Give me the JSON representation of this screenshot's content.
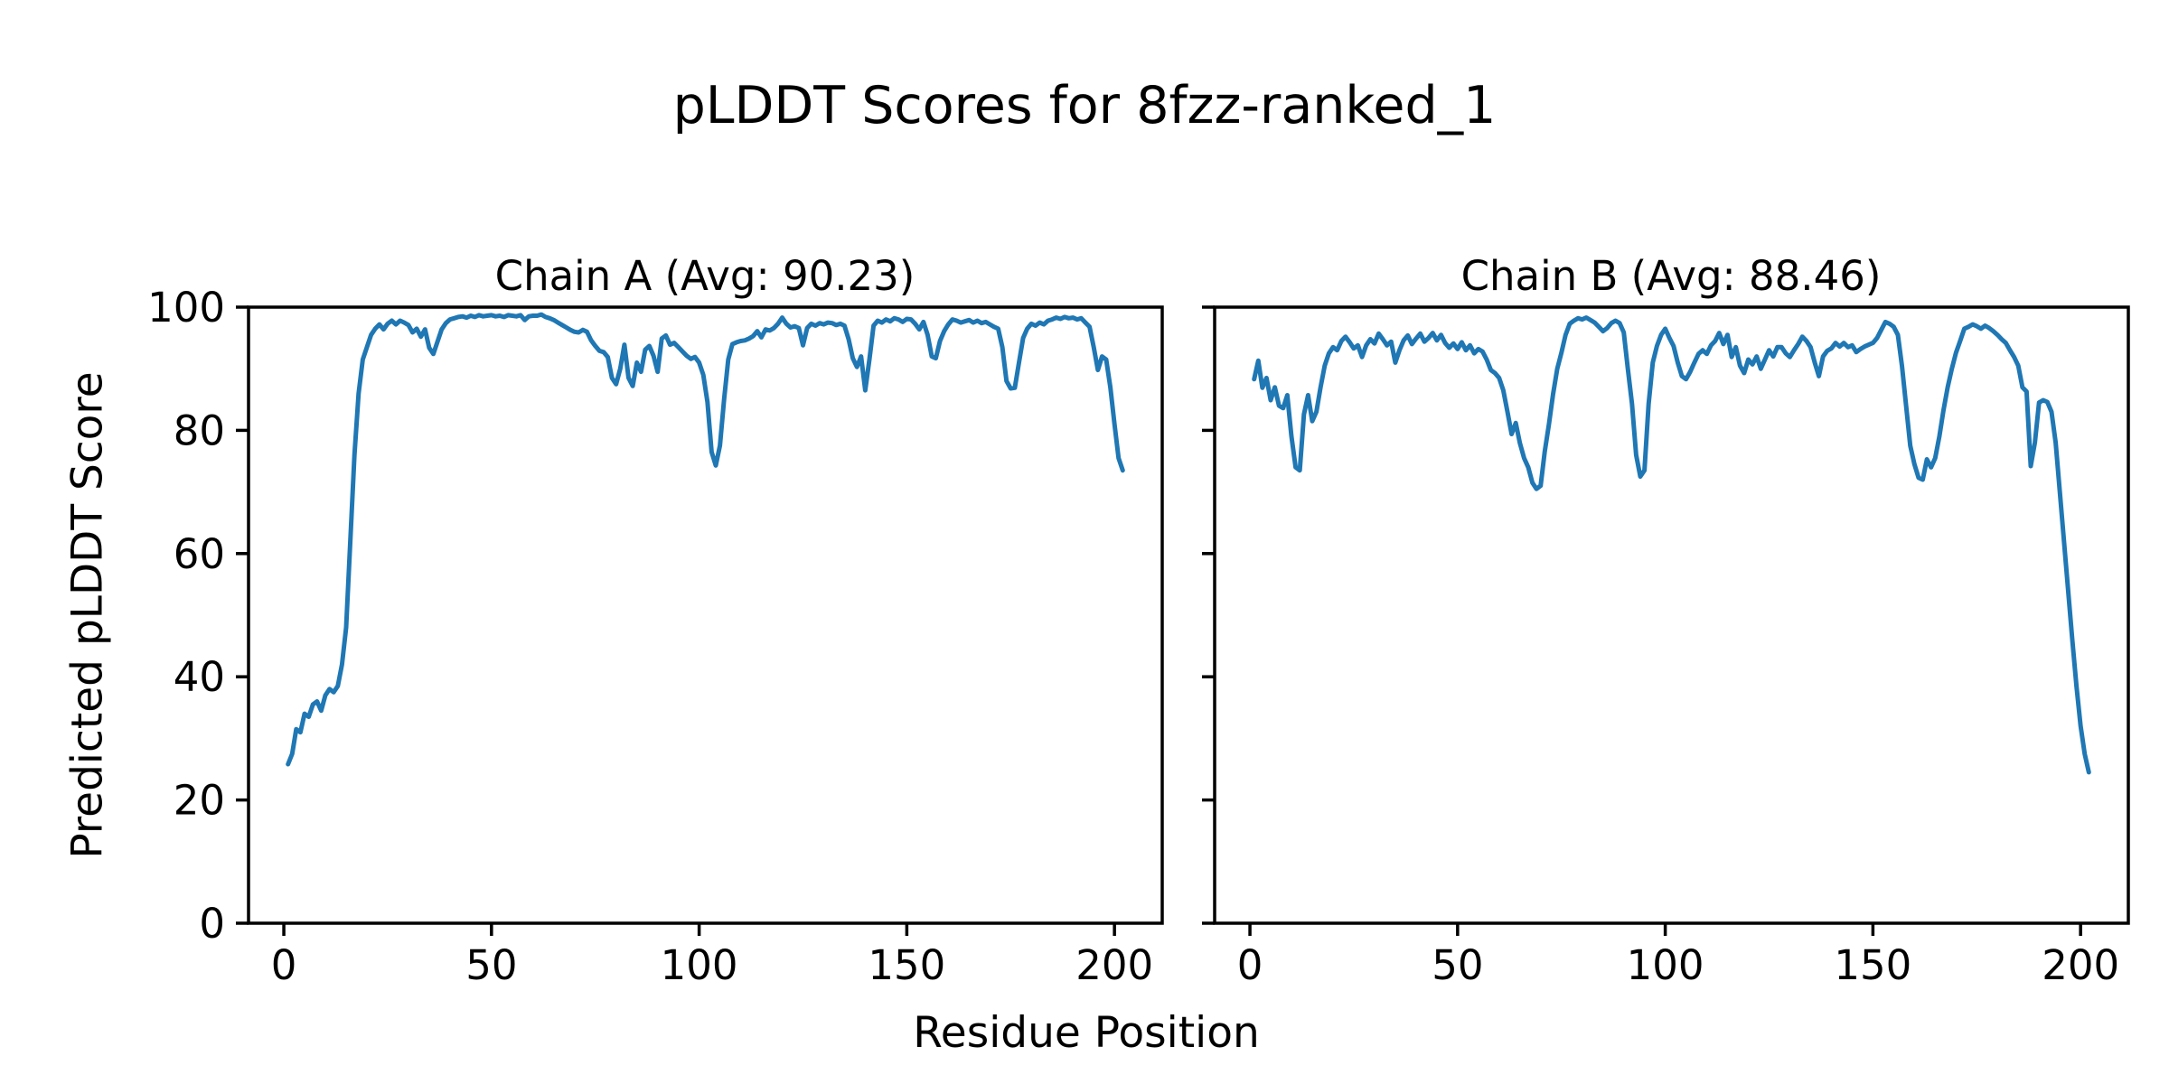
{
  "figure": {
    "title": "pLDDT Scores for 8fzz-ranked_1"
  },
  "chart_data": {
    "type": "line",
    "title": "pLDDT Scores for 8fzz-ranked_1",
    "xlabel": "Residue Position",
    "ylabel": "Predicted pLDDT Score",
    "grid": false,
    "legend": null,
    "line_color": "#1f77b4",
    "axis_color": "#000000",
    "xlim": [
      -8.5,
      211.5
    ],
    "ylim": [
      0,
      100
    ],
    "xticks": [
      0,
      50,
      100,
      150,
      200
    ],
    "yticks": [
      0,
      20,
      40,
      60,
      80,
      100
    ],
    "x_start": 1,
    "subplots": [
      {
        "chain": "a",
        "title": "Chain A (Avg: 90.23)",
        "avg": 90.23,
        "values": [
          25.8,
          27.5,
          31.5,
          31.0,
          34.0,
          33.5,
          35.5,
          36.0,
          34.5,
          37.0,
          38.0,
          37.5,
          38.5,
          42.0,
          48.0,
          62.0,
          76.0,
          86.0,
          91.5,
          93.5,
          95.5,
          96.5,
          97.2,
          96.4,
          97.3,
          97.8,
          97.2,
          97.8,
          97.5,
          97.1,
          95.9,
          96.5,
          95.2,
          96.4,
          93.4,
          92.4,
          94.4,
          96.4,
          97.4,
          98.0,
          98.2,
          98.4,
          98.5,
          98.3,
          98.6,
          98.4,
          98.7,
          98.5,
          98.6,
          98.7,
          98.5,
          98.6,
          98.4,
          98.7,
          98.6,
          98.5,
          98.7,
          97.9,
          98.5,
          98.6,
          98.6,
          98.8,
          98.4,
          98.2,
          97.9,
          97.5,
          97.1,
          96.7,
          96.3,
          96.0,
          95.9,
          96.3,
          96.0,
          94.6,
          93.7,
          92.9,
          92.7,
          91.9,
          88.5,
          87.5,
          90.0,
          93.9,
          88.5,
          87.2,
          91.0,
          89.5,
          93.1,
          93.7,
          92.1,
          89.5,
          94.9,
          95.4,
          93.9,
          94.2,
          93.5,
          92.8,
          92.1,
          91.6,
          91.9,
          91.0,
          89.0,
          84.6,
          76.5,
          74.3,
          77.5,
          85.0,
          91.5,
          94.0,
          94.3,
          94.5,
          94.6,
          94.9,
          95.3,
          96.1,
          95.1,
          96.4,
          96.2,
          96.6,
          97.3,
          98.3,
          97.3,
          96.7,
          96.9,
          96.6,
          93.8,
          96.6,
          97.3,
          97.0,
          97.4,
          97.2,
          97.5,
          97.4,
          97.1,
          97.3,
          97.0,
          94.8,
          91.7,
          90.3,
          92.0,
          86.5,
          91.5,
          97.0,
          97.8,
          97.5,
          98.0,
          97.7,
          98.2,
          98.0,
          97.6,
          98.1,
          98.0,
          97.3,
          96.4,
          97.6,
          95.5,
          92.0,
          91.7,
          94.5,
          96.1,
          97.2,
          98.0,
          97.8,
          97.5,
          97.7,
          97.9,
          97.5,
          97.8,
          97.4,
          97.6,
          97.2,
          96.8,
          96.5,
          93.5,
          88.0,
          86.8,
          86.9,
          91.0,
          95.0,
          96.5,
          97.3,
          97.0,
          97.5,
          97.2,
          97.8,
          98.0,
          98.3,
          98.1,
          98.4,
          98.2,
          98.3,
          98.0,
          98.2,
          97.5,
          96.8,
          93.5,
          89.8,
          92.0,
          91.5,
          87.0,
          81.0,
          75.5,
          73.5
        ]
      },
      {
        "chain": "b",
        "title": "Chain B (Avg: 88.46)",
        "avg": 88.46,
        "values": [
          88.3,
          91.3,
          86.9,
          88.5,
          84.9,
          87.0,
          84.0,
          83.6,
          85.7,
          79.0,
          74.0,
          73.5,
          82.6,
          85.7,
          81.5,
          83.0,
          87.0,
          90.5,
          92.5,
          93.5,
          93.0,
          94.5,
          95.2,
          94.3,
          93.3,
          93.8,
          91.9,
          93.8,
          94.8,
          94.1,
          95.7,
          94.8,
          93.8,
          94.4,
          91.0,
          93.0,
          94.6,
          95.4,
          94.0,
          94.9,
          95.7,
          94.4,
          95.0,
          95.8,
          94.6,
          95.5,
          94.2,
          93.4,
          94.1,
          93.2,
          94.3,
          93.0,
          93.8,
          92.5,
          93.2,
          92.8,
          91.5,
          89.8,
          89.3,
          88.5,
          86.5,
          83.0,
          79.4,
          81.2,
          77.9,
          75.5,
          74.0,
          71.5,
          70.5,
          71.0,
          76.6,
          81.0,
          85.9,
          90.0,
          92.6,
          95.5,
          97.3,
          97.8,
          98.2,
          98.0,
          98.3,
          97.9,
          97.5,
          96.8,
          96.1,
          96.6,
          97.4,
          97.8,
          97.4,
          95.9,
          90.0,
          84.3,
          76.0,
          72.5,
          73.5,
          84.3,
          91.0,
          93.7,
          95.5,
          96.5,
          95.0,
          93.7,
          91.0,
          88.8,
          88.3,
          89.5,
          91.0,
          92.4,
          93.0,
          92.4,
          93.8,
          94.5,
          95.8,
          94.0,
          95.5,
          91.9,
          93.5,
          90.5,
          89.3,
          91.5,
          90.7,
          92.0,
          90.0,
          91.5,
          93.0,
          92.0,
          93.5,
          93.5,
          92.5,
          91.9,
          93.0,
          94.0,
          95.2,
          94.5,
          93.5,
          91.0,
          88.8,
          92.0,
          92.9,
          93.3,
          94.2,
          93.6,
          94.2,
          93.5,
          93.8,
          92.7,
          93.2,
          93.6,
          93.9,
          94.2,
          95.0,
          96.3,
          97.6,
          97.3,
          96.8,
          95.5,
          90.5,
          84.0,
          77.5,
          74.5,
          72.3,
          72.0,
          75.3,
          74.0,
          75.5,
          79.0,
          83.3,
          87.0,
          90.0,
          92.6,
          94.5,
          96.5,
          96.8,
          97.2,
          96.9,
          96.5,
          97.0,
          96.6,
          96.1,
          95.5,
          94.8,
          94.2,
          93.0,
          91.9,
          90.5,
          87.0,
          86.3,
          74.2,
          78.0,
          84.5,
          84.9,
          84.6,
          83.0,
          78.0,
          70.0,
          62.0,
          54.0,
          46.0,
          38.5,
          32.0,
          27.5,
          24.5
        ]
      }
    ]
  }
}
